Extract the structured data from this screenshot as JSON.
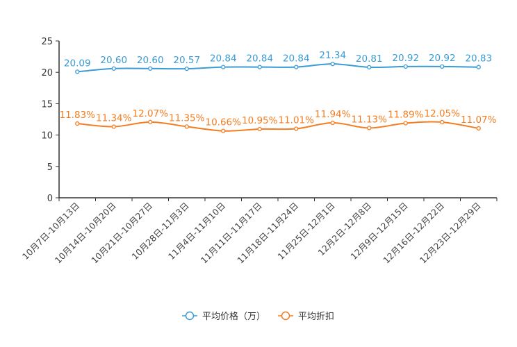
{
  "chart_data": {
    "type": "line",
    "categories": [
      "10月7日-10月13日",
      "10月14日-10月20日",
      "10月21日-10月27日",
      "10月28日-11月3日",
      "11月4日-11月10日",
      "11月11日-11月17日",
      "11月18日-11月24日",
      "11月25日-12月1日",
      "12月2日-12月8日",
      "12月9日-12月15日",
      "12月16日-12月22日",
      "12月23日-12月29日"
    ],
    "series": [
      {
        "name": "平均价格（万）",
        "color": "#3a9bd5",
        "label_suffix": "",
        "values": [
          20.09,
          20.6,
          20.6,
          20.57,
          20.84,
          20.84,
          20.84,
          21.34,
          20.81,
          20.92,
          20.92,
          20.83
        ]
      },
      {
        "name": "平均折扣",
        "color": "#f57c1f",
        "label_suffix": "%",
        "values": [
          11.83,
          11.34,
          12.07,
          11.35,
          10.66,
          10.95,
          11.01,
          11.94,
          11.13,
          11.89,
          12.05,
          11.07
        ]
      }
    ],
    "ylim": [
      0,
      25
    ],
    "yticks": [
      0,
      5,
      10,
      15,
      20,
      25
    ],
    "smooth": true,
    "grid": false,
    "legend": "bottom-center",
    "title": "",
    "xlabel": "",
    "ylabel": ""
  }
}
